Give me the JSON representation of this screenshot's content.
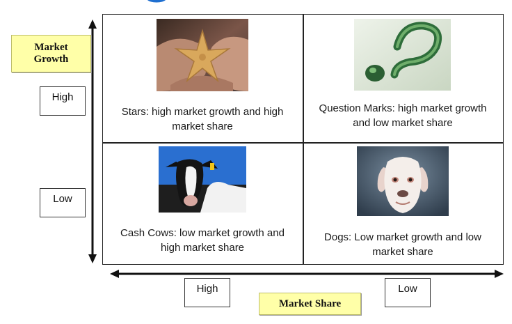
{
  "axes": {
    "vertical_title": "Market Growth",
    "horizontal_title": "Market Share",
    "growth_levels": {
      "high": "High",
      "low": "Low"
    },
    "share_levels": {
      "high": "High",
      "low": "Low"
    }
  },
  "quadrants": {
    "stars": "Stars: high market growth and high market share",
    "question_marks": "Question Marks: high market growth and low market share",
    "cash_cows": "Cash Cows: low market growth and high market share",
    "dogs": "Dogs: Low market growth and low market share"
  },
  "colors": {
    "title_fragment": "#1f6fd0",
    "axis_title_bg": "#ffffa8",
    "grid_line": "#222222"
  },
  "images": {
    "stars": "starfish-in-hands",
    "question_marks": "green-question-mark",
    "cash_cows": "holstein-cow",
    "dogs": "white-puppy"
  }
}
